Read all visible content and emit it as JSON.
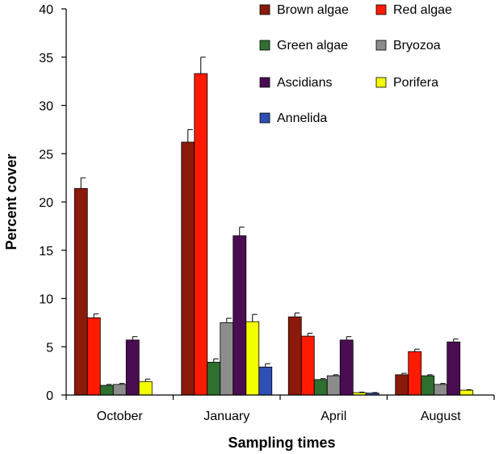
{
  "chart_data": {
    "type": "bar",
    "title": "",
    "xlabel": "Sampling times",
    "ylabel": "Percent cover",
    "ylim": [
      0,
      40
    ],
    "yticks": [
      0,
      5,
      10,
      15,
      20,
      25,
      30,
      35,
      40
    ],
    "grid": false,
    "legend_position": "top-right",
    "categories": [
      "October",
      "January",
      "April",
      "August"
    ],
    "series": [
      {
        "name": "Brown algae",
        "color": "#8B1A0A",
        "values": [
          21.4,
          26.2,
          8.1,
          2.1
        ],
        "errors": [
          1.1,
          1.3,
          0.4,
          0.15
        ]
      },
      {
        "name": "Red algae",
        "color": "#FF1A00",
        "values": [
          8.0,
          33.3,
          6.1,
          4.5
        ],
        "errors": [
          0.4,
          1.7,
          0.3,
          0.25
        ]
      },
      {
        "name": "Green algae",
        "color": "#2F6F2F",
        "values": [
          1.0,
          3.4,
          1.6,
          2.0
        ],
        "errors": [
          0.1,
          0.35,
          0.1,
          0.1
        ]
      },
      {
        "name": "Bryozoa",
        "color": "#8C8C8C",
        "values": [
          1.1,
          7.5,
          2.0,
          1.1
        ],
        "errors": [
          0.1,
          0.45,
          0.1,
          0.1
        ]
      },
      {
        "name": "Ascidians",
        "color": "#4A0D52",
        "values": [
          5.7,
          16.5,
          5.7,
          5.5
        ],
        "errors": [
          0.35,
          0.9,
          0.35,
          0.3
        ]
      },
      {
        "name": "Porifera",
        "color": "#F2FF00",
        "values": [
          1.4,
          7.6,
          0.25,
          0.5
        ],
        "errors": [
          0.25,
          0.75,
          0.05,
          0.05
        ]
      },
      {
        "name": "Annelida",
        "color": "#2E4FB3",
        "values": [
          0.0,
          2.9,
          0.2,
          0.0
        ],
        "errors": [
          0.0,
          0.35,
          0.05,
          0.0
        ]
      }
    ]
  }
}
